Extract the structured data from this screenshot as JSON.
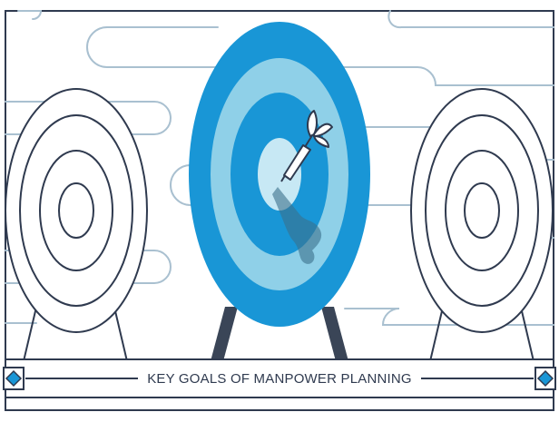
{
  "banner": {
    "title": "KEY GOALS OF MANPOWER PLANNING"
  },
  "colors": {
    "outline": "#2f3a4f",
    "cloud_line": "#a9c0d0",
    "target_outer": "#1996d6",
    "target_mid": "#8fd0e8",
    "target_bullseye": "#c7e8f4",
    "dart_shadow": "#3b6f8a",
    "banner_gem": "#1996d6",
    "stand": "#3a4557"
  },
  "icons": [
    "left-target-icon",
    "center-target-icon",
    "right-target-icon",
    "dart-icon",
    "banner-gem-icon"
  ]
}
